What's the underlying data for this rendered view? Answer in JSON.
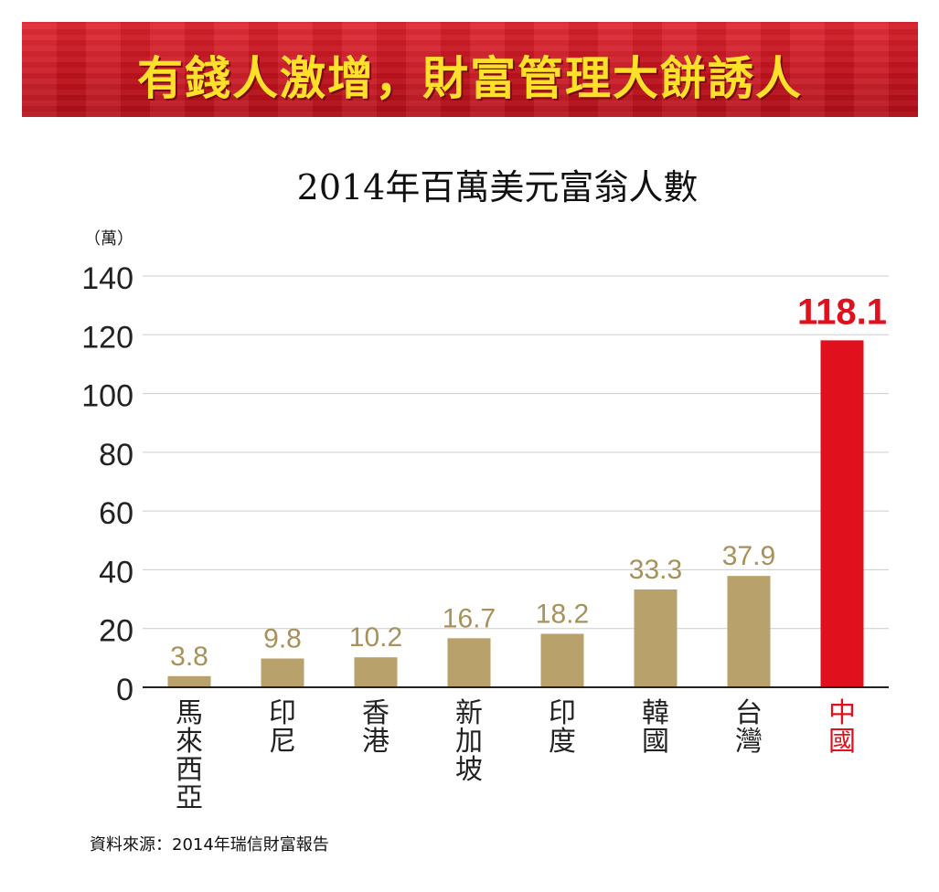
{
  "banner": {
    "title": "有錢人激增，財富管理大餅誘人"
  },
  "chart_data": {
    "type": "bar",
    "title": "2014年百萬美元富翁人數",
    "unit": "（萬）",
    "categories": [
      "馬來西亞",
      "印尼",
      "香港",
      "新加坡",
      "印度",
      "韓國",
      "台灣",
      "中國"
    ],
    "values": [
      3.8,
      9.8,
      10.2,
      16.7,
      18.2,
      33.3,
      37.9,
      118.1
    ],
    "value_labels": [
      "3.8",
      "9.8",
      "10.2",
      "16.7",
      "18.2",
      "33.3",
      "37.9",
      "118.1"
    ],
    "highlight_index": 7,
    "ylim": [
      0,
      140
    ],
    "yticks": [
      "0",
      "20",
      "40",
      "60",
      "80",
      "100",
      "120",
      "140"
    ],
    "grid": true,
    "colors": {
      "bar": "#b8a16a",
      "label": "#a8915a",
      "highlight": "#e0111c",
      "axis": "#222222",
      "grid": "#cccccc"
    }
  },
  "footer": {
    "source": "資料來源：2014年瑞信財富報告"
  }
}
